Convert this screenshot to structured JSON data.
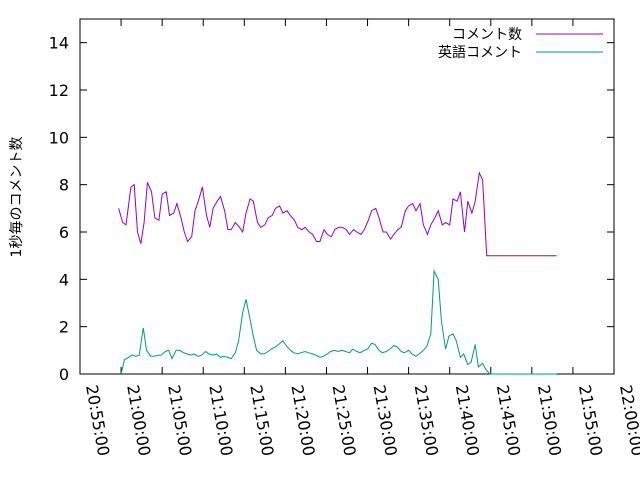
{
  "chart_data": {
    "type": "line",
    "title": "",
    "xlabel": "",
    "ylabel": "1秒毎のコメント数",
    "ylim": [
      0,
      15
    ],
    "yticks": [
      0,
      2,
      4,
      6,
      8,
      10,
      12,
      14
    ],
    "xticks": [
      "20:55:00",
      "21:00:00",
      "21:05:00",
      "21:10:00",
      "21:15:00",
      "21:20:00",
      "21:25:00",
      "21:30:00",
      "21:35:00",
      "21:40:00",
      "21:45:00",
      "21:50:00",
      "21:55:00",
      "22:00:00"
    ],
    "xlim_minutes": [
      0,
      65
    ],
    "grid": false,
    "legend_position": "top-right",
    "series": [
      {
        "name": "コメント数",
        "color": "#9400d3",
        "x": [
          4.7,
          5.2,
          5.6,
          6.2,
          6.6,
          7.0,
          7.4,
          7.8,
          8.2,
          8.7,
          9.1,
          9.6,
          10.0,
          10.5,
          10.9,
          11.4,
          11.8,
          12.3,
          12.7,
          13.1,
          13.6,
          14.0,
          14.4,
          14.9,
          15.4,
          15.8,
          16.2,
          16.7,
          17.1,
          17.6,
          18.0,
          18.4,
          18.9,
          19.4,
          19.8,
          20.2,
          20.7,
          21.1,
          21.6,
          22.0,
          22.5,
          22.9,
          23.4,
          23.8,
          24.3,
          24.7,
          25.2,
          25.6,
          26.1,
          26.5,
          27.0,
          27.4,
          27.9,
          28.3,
          28.8,
          29.2,
          29.7,
          30.1,
          30.6,
          31.0,
          31.5,
          31.9,
          32.4,
          32.8,
          33.3,
          33.7,
          34.2,
          34.6,
          35.1,
          35.5,
          36.0,
          36.4,
          36.9,
          37.3,
          37.8,
          38.2,
          38.7,
          39.1,
          39.6,
          40.0,
          40.5,
          40.9,
          41.4,
          41.8,
          42.3,
          42.7,
          43.2,
          43.6,
          44.1,
          44.5,
          45.0,
          45.4,
          45.9,
          46.3,
          46.8,
          47.2,
          47.7,
          48.1,
          48.6,
          49.0,
          49.5,
          49.9,
          50.4,
          50.8,
          51.3,
          51.7,
          52.2,
          52.6,
          53.1,
          53.5,
          54.0,
          54.4,
          54.9,
          55.3,
          55.8,
          56.2,
          56.7,
          57.1,
          57.6,
          58.0
        ],
        "values": [
          7.0,
          6.4,
          6.3,
          7.9,
          8.0,
          6.0,
          5.5,
          6.4,
          8.1,
          7.7,
          6.6,
          6.5,
          7.6,
          7.7,
          6.7,
          6.8,
          7.2,
          6.6,
          6.0,
          5.6,
          5.8,
          6.9,
          7.3,
          7.9,
          6.7,
          6.2,
          7.0,
          7.3,
          7.5,
          6.9,
          6.1,
          6.1,
          6.4,
          6.2,
          6.0,
          6.8,
          7.4,
          7.3,
          6.4,
          6.2,
          6.3,
          6.6,
          6.7,
          7.0,
          7.1,
          6.8,
          6.9,
          6.7,
          6.5,
          6.2,
          6.1,
          6.2,
          6.0,
          5.9,
          5.6,
          5.6,
          6.1,
          5.9,
          5.8,
          6.1,
          6.2,
          6.2,
          6.1,
          5.9,
          6.1,
          6.0,
          5.9,
          6.1,
          6.5,
          6.9,
          7.0,
          6.6,
          6.0,
          6.0,
          5.7,
          5.9,
          6.1,
          6.2,
          6.9,
          7.1,
          7.2,
          6.9,
          7.2,
          6.3,
          5.9,
          6.3,
          6.6,
          6.9,
          6.3,
          6.4,
          6.3,
          7.4,
          7.3,
          7.7,
          6.0,
          7.3,
          6.8,
          7.3,
          8.5,
          8.2,
          5.0,
          5.0,
          5.0,
          5.0,
          5.0,
          5.0,
          5.0,
          5.0,
          5.0,
          5.0,
          5.0,
          5.0,
          5.0,
          5.0,
          5.0,
          5.0,
          5.0,
          5.0,
          5.0,
          5.0
        ]
      },
      {
        "name": "英語コメント",
        "color": "#009e73",
        "x": [
          5.0,
          5.4,
          5.9,
          6.3,
          6.8,
          7.2,
          7.7,
          8.1,
          8.6,
          9.0,
          9.5,
          9.9,
          10.4,
          10.8,
          11.2,
          11.7,
          12.1,
          12.6,
          13.0,
          13.5,
          13.9,
          14.4,
          14.8,
          15.3,
          15.7,
          16.2,
          16.6,
          17.1,
          17.5,
          18.0,
          18.4,
          18.9,
          19.3,
          19.8,
          20.2,
          20.6,
          21.1,
          21.5,
          22.0,
          22.4,
          22.9,
          23.3,
          23.8,
          24.2,
          24.7,
          25.1,
          25.6,
          26.0,
          26.5,
          26.9,
          27.4,
          27.8,
          28.3,
          28.7,
          29.2,
          29.6,
          30.1,
          30.5,
          31.0,
          31.4,
          31.9,
          32.3,
          32.8,
          33.2,
          33.7,
          34.1,
          34.6,
          35.0,
          35.5,
          35.9,
          36.4,
          36.8,
          37.3,
          37.7,
          38.2,
          38.6,
          39.1,
          39.5,
          40.0,
          40.4,
          40.9,
          41.3,
          41.8,
          42.2,
          42.7,
          43.1,
          43.6,
          44.0,
          44.5,
          44.9,
          45.4,
          45.8,
          46.3,
          46.7,
          47.2,
          47.6,
          48.1,
          48.5,
          49.0,
          49.4,
          49.9,
          50.3,
          50.8,
          51.2,
          51.7,
          52.1,
          52.6,
          53.0,
          53.5,
          53.9,
          54.4,
          54.8,
          55.3,
          55.7,
          56.2,
          56.6,
          57.1,
          57.5,
          58.0
        ],
        "values": [
          0.0,
          0.6,
          0.7,
          0.8,
          0.75,
          0.8,
          1.95,
          1.0,
          0.75,
          0.75,
          0.8,
          0.8,
          0.95,
          1.0,
          0.65,
          1.0,
          1.0,
          0.9,
          0.85,
          0.8,
          0.85,
          0.75,
          0.8,
          0.95,
          0.85,
          0.8,
          0.85,
          0.7,
          0.75,
          0.7,
          0.65,
          0.9,
          1.4,
          2.6,
          3.15,
          2.5,
          1.6,
          1.0,
          0.85,
          0.85,
          0.95,
          1.05,
          1.15,
          1.25,
          1.4,
          1.2,
          1.0,
          0.9,
          0.85,
          0.9,
          0.95,
          0.9,
          0.85,
          0.8,
          0.7,
          0.75,
          0.85,
          0.95,
          1.0,
          0.95,
          1.0,
          0.95,
          0.9,
          1.05,
          0.95,
          0.9,
          1.0,
          1.05,
          1.3,
          1.25,
          1.0,
          0.9,
          0.95,
          1.05,
          1.2,
          1.15,
          0.95,
          0.9,
          1.0,
          0.85,
          0.75,
          0.85,
          1.0,
          1.15,
          1.7,
          4.35,
          4.0,
          2.2,
          1.05,
          1.6,
          1.7,
          1.4,
          0.7,
          0.85,
          0.4,
          0.5,
          1.25,
          0.3,
          0.45,
          0.2,
          0.0,
          0.0,
          0.0,
          0.0,
          0.0,
          0.0,
          0.0,
          0.0,
          0.0,
          0.0,
          0.0,
          0.0,
          0.0,
          0.0,
          0.0,
          0.0,
          0.0,
          0.0,
          0.0
        ]
      }
    ]
  }
}
